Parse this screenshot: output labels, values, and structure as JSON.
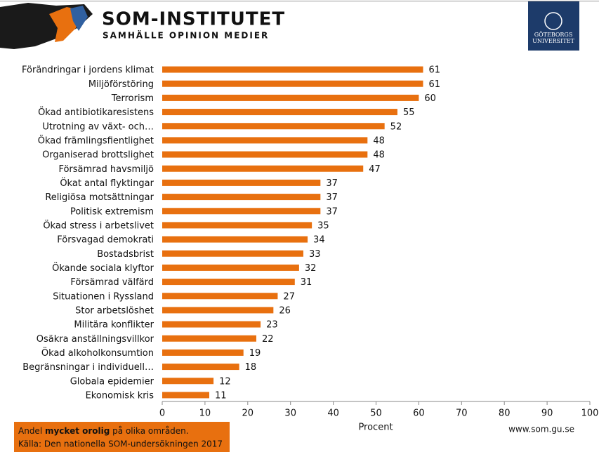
{
  "header": {
    "brand": "SOM-INSTITUTET",
    "tagline": "SAMHÄLLE OPINION MEDIER",
    "university_line1": "GÖTEBORGS",
    "university_line2": "UNIVERSITET"
  },
  "chart_data": {
    "type": "barh",
    "categories": [
      "Förändringar i jordens klimat",
      "Miljöförstöring",
      "Terrorism",
      "Ökad antibiotikaresistens",
      "Utrotning av  växt- och…",
      "Ökad främlingsfientlighet",
      "Organiserad brottslighet",
      "Försämrad havsmiljö",
      "Ökat antal flyktingar",
      "Religiösa motsättningar",
      "Politisk extremism",
      "Ökad stress i arbetslivet",
      "Försvagad demokrati",
      "Bostadsbrist",
      "Ökande sociala klyftor",
      "Försämrad välfärd",
      "Situationen i Ryssland",
      "Stor arbetslöshet",
      "Militära konflikter",
      "Osäkra anställningsvillkor",
      "Ökad alkoholkonsumtion",
      "Begränsningar i individuell…",
      "Globala epidemier",
      "Ekonomisk kris"
    ],
    "values": [
      61,
      61,
      60,
      55,
      52,
      48,
      48,
      47,
      37,
      37,
      37,
      35,
      34,
      33,
      32,
      31,
      27,
      26,
      23,
      22,
      19,
      18,
      12,
      11
    ],
    "color": "#e8700f",
    "xlim": [
      0,
      100
    ],
    "xticks": [
      0,
      10,
      20,
      30,
      40,
      50,
      60,
      70,
      80,
      90,
      100
    ],
    "xlabel": "Procent"
  },
  "footer": {
    "note_start": "Andel ",
    "note_bold": "mycket orolig",
    "note_end": " på olika områden.",
    "source": "Källa: Den nationella SOM-undersökningen 2017",
    "url": "www.som.gu.se"
  }
}
